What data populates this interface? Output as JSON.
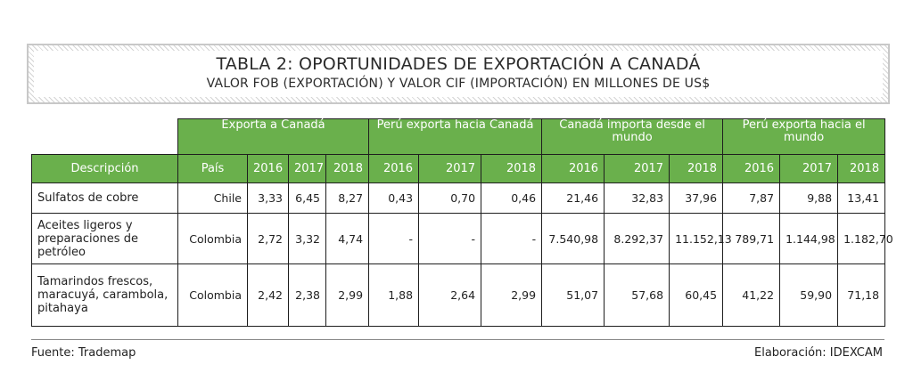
{
  "title": {
    "main": "TABLA 2: OPORTUNIDADES DE EXPORTACIÓN A CANADÁ",
    "sub": "VALOR FOB (EXPORTACIÓN) Y VALOR CIF (IMPORTACIÓN) EN MILLONES DE US$"
  },
  "table": {
    "groups": [
      "Exporta a Canadá",
      "Perú exporta hacia Canadá",
      "Canadá importa desde el mundo",
      "Perú exporta hacia el mundo"
    ],
    "columns": [
      "Descripción",
      "País",
      "2016",
      "2017",
      "2018",
      "2016",
      "2017",
      "2018",
      "2016",
      "2017",
      "2018",
      "2016",
      "2017",
      "2018"
    ],
    "rows": [
      {
        "descripcion": "Sulfatos de cobre",
        "pais": "Chile",
        "values": [
          "3,33",
          "6,45",
          "8,27",
          "0,43",
          "0,70",
          "0,46",
          "21,46",
          "32,83",
          "37,96",
          "7,87",
          "9,88",
          "13,41"
        ]
      },
      {
        "descripcion": "Aceites ligeros y preparaciones de petróleo",
        "pais": "Colombia",
        "values": [
          "2,72",
          "3,32",
          "4,74",
          "-",
          "-",
          "-",
          "7.540,98",
          "8.292,37",
          "11.152,13",
          "789,71",
          "1.144,98",
          "1.182,70"
        ]
      },
      {
        "descripcion": "Tamarindos frescos, maracuyá, carambola, pitahaya",
        "pais": "Colombia",
        "values": [
          "2,42",
          "2,38",
          "2,99",
          "1,88",
          "2,64",
          "2,99",
          "51,07",
          "57,68",
          "60,45",
          "41,22",
          "59,90",
          "71,18"
        ]
      }
    ]
  },
  "footer": {
    "source": "Fuente: Trademap",
    "credit": "Elaboración: IDEXCAM"
  },
  "colors": {
    "header_green": "#6ab04c",
    "border": "#1e1e1e"
  }
}
